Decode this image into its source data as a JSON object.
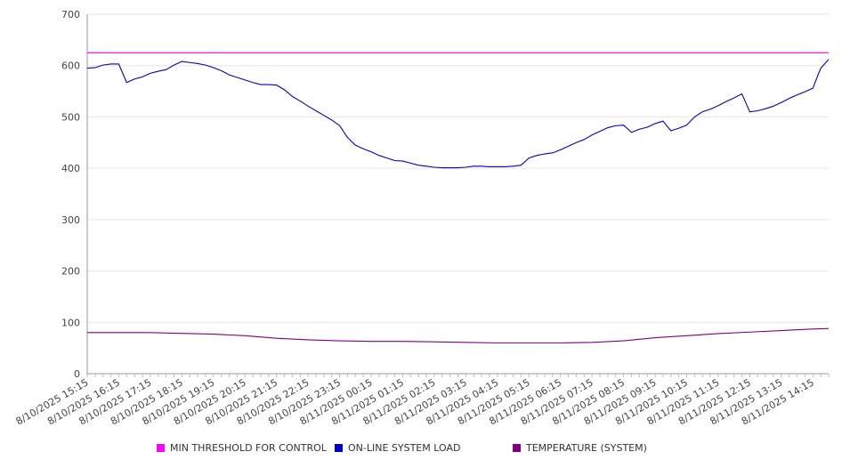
{
  "chart_data": {
    "type": "line",
    "title": "",
    "xlabel": "",
    "ylabel": "",
    "ylim": [
      0,
      700
    ],
    "yticks": [
      0,
      100,
      200,
      300,
      400,
      500,
      600,
      700
    ],
    "grid": true,
    "legend_position": "bottom",
    "x_start": "8/10/2025 15:15",
    "x_end": "8/11/2025 14:45",
    "x_tick_labels": [
      "8/10/2025 15:15",
      "8/10/2025 16:15",
      "8/10/2025 17:15",
      "8/10/2025 18:15",
      "8/10/2025 19:15",
      "8/10/2025 20:15",
      "8/10/2025 21:15",
      "8/10/2025 22:15",
      "8/10/2025 23:15",
      "8/11/2025 00:15",
      "8/11/2025 01:15",
      "8/11/2025 02:15",
      "8/11/2025 03:15",
      "8/11/2025 04:15",
      "8/11/2025 05:15",
      "8/11/2025 06:15",
      "8/11/2025 07:15",
      "8/11/2025 08:15",
      "8/11/2025 09:15",
      "8/11/2025 10:15",
      "8/11/2025 11:15",
      "8/11/2025 12:15",
      "8/11/2025 13:15",
      "8/11/2025 14:15"
    ],
    "series": [
      {
        "name": "MIN THRESHOLD FOR CONTROL",
        "color": "#ff00ff",
        "points": [
          [
            "8/10/2025 15:15",
            625
          ],
          [
            "8/11/2025 14:45",
            625
          ]
        ]
      },
      {
        "name": "ON-LINE SYSTEM LOAD",
        "color": "#0000cc",
        "points": [
          [
            "8/10/2025 15:15",
            595
          ],
          [
            "8/10/2025 15:30",
            596
          ],
          [
            "8/10/2025 15:45",
            601
          ],
          [
            "8/10/2025 16:00",
            603
          ],
          [
            "8/10/2025 16:15",
            603
          ],
          [
            "8/10/2025 16:30",
            567
          ],
          [
            "8/10/2025 16:45",
            574
          ],
          [
            "8/10/2025 17:00",
            578
          ],
          [
            "8/10/2025 17:15",
            585
          ],
          [
            "8/10/2025 17:30",
            589
          ],
          [
            "8/10/2025 17:45",
            592
          ],
          [
            "8/10/2025 18:00",
            601
          ],
          [
            "8/10/2025 18:15",
            608
          ],
          [
            "8/10/2025 18:30",
            606
          ],
          [
            "8/10/2025 18:45",
            604
          ],
          [
            "8/10/2025 19:00",
            601
          ],
          [
            "8/10/2025 19:15",
            596
          ],
          [
            "8/10/2025 19:30",
            590
          ],
          [
            "8/10/2025 19:45",
            582
          ],
          [
            "8/10/2025 20:00",
            577
          ],
          [
            "8/10/2025 20:15",
            572
          ],
          [
            "8/10/2025 20:30",
            567
          ],
          [
            "8/10/2025 20:45",
            563
          ],
          [
            "8/10/2025 21:00",
            563
          ],
          [
            "8/10/2025 21:15",
            562
          ],
          [
            "8/10/2025 21:30",
            553
          ],
          [
            "8/10/2025 21:45",
            540
          ],
          [
            "8/10/2025 22:00",
            531
          ],
          [
            "8/10/2025 22:15",
            521
          ],
          [
            "8/10/2025 22:30",
            512
          ],
          [
            "8/10/2025 22:45",
            503
          ],
          [
            "8/10/2025 23:00",
            494
          ],
          [
            "8/10/2025 23:15",
            483
          ],
          [
            "8/10/2025 23:30",
            460
          ],
          [
            "8/10/2025 23:45",
            445
          ],
          [
            "8/11/2025 00:00",
            438
          ],
          [
            "8/11/2025 00:15",
            432
          ],
          [
            "8/11/2025 00:30",
            425
          ],
          [
            "8/11/2025 00:45",
            420
          ],
          [
            "8/11/2025 01:00",
            415
          ],
          [
            "8/11/2025 01:15",
            414
          ],
          [
            "8/11/2025 01:30",
            410
          ],
          [
            "8/11/2025 01:45",
            406
          ],
          [
            "8/11/2025 02:00",
            404
          ],
          [
            "8/11/2025 02:15",
            402
          ],
          [
            "8/11/2025 02:30",
            401
          ],
          [
            "8/11/2025 02:45",
            401
          ],
          [
            "8/11/2025 03:00",
            401
          ],
          [
            "8/11/2025 03:15",
            402
          ],
          [
            "8/11/2025 03:30",
            404
          ],
          [
            "8/11/2025 03:45",
            404
          ],
          [
            "8/11/2025 04:00",
            403
          ],
          [
            "8/11/2025 04:15",
            403
          ],
          [
            "8/11/2025 04:30",
            403
          ],
          [
            "8/11/2025 04:45",
            404
          ],
          [
            "8/11/2025 05:00",
            406
          ],
          [
            "8/11/2025 05:15",
            420
          ],
          [
            "8/11/2025 05:30",
            425
          ],
          [
            "8/11/2025 05:45",
            428
          ],
          [
            "8/11/2025 06:00",
            430
          ],
          [
            "8/11/2025 06:15",
            436
          ],
          [
            "8/11/2025 06:30",
            443
          ],
          [
            "8/11/2025 06:45",
            450
          ],
          [
            "8/11/2025 07:00",
            456
          ],
          [
            "8/11/2025 07:15",
            465
          ],
          [
            "8/11/2025 07:30",
            472
          ],
          [
            "8/11/2025 07:45",
            479
          ],
          [
            "8/11/2025 08:00",
            483
          ],
          [
            "8/11/2025 08:15",
            484
          ],
          [
            "8/11/2025 08:30",
            470
          ],
          [
            "8/11/2025 08:45",
            476
          ],
          [
            "8/11/2025 09:00",
            480
          ],
          [
            "8/11/2025 09:15",
            487
          ],
          [
            "8/11/2025 09:30",
            492
          ],
          [
            "8/11/2025 09:45",
            473
          ],
          [
            "8/11/2025 10:00",
            478
          ],
          [
            "8/11/2025 10:15",
            484
          ],
          [
            "8/11/2025 10:30",
            500
          ],
          [
            "8/11/2025 10:45",
            510
          ],
          [
            "8/11/2025 11:00",
            515
          ],
          [
            "8/11/2025 11:15",
            522
          ],
          [
            "8/11/2025 11:30",
            530
          ],
          [
            "8/11/2025 11:45",
            537
          ],
          [
            "8/11/2025 12:00",
            545
          ],
          [
            "8/11/2025 12:15",
            510
          ],
          [
            "8/11/2025 12:30",
            512
          ],
          [
            "8/11/2025 12:45",
            516
          ],
          [
            "8/11/2025 13:00",
            521
          ],
          [
            "8/11/2025 13:15",
            528
          ],
          [
            "8/11/2025 13:30",
            536
          ],
          [
            "8/11/2025 13:45",
            543
          ],
          [
            "8/11/2025 14:00",
            549
          ],
          [
            "8/11/2025 14:15",
            556
          ],
          [
            "8/11/2025 14:30",
            595
          ],
          [
            "8/11/2025 14:45",
            612
          ]
        ]
      },
      {
        "name": "TEMPERATURE (SYSTEM)",
        "color": "#800080",
        "points": [
          [
            "8/10/2025 15:15",
            80
          ],
          [
            "8/10/2025 17:15",
            80
          ],
          [
            "8/10/2025 19:15",
            77
          ],
          [
            "8/10/2025 20:15",
            74
          ],
          [
            "8/10/2025 21:15",
            69
          ],
          [
            "8/10/2025 22:15",
            66
          ],
          [
            "8/10/2025 23:15",
            64
          ],
          [
            "8/11/2025 00:15",
            63
          ],
          [
            "8/11/2025 01:15",
            63
          ],
          [
            "8/11/2025 02:15",
            62
          ],
          [
            "8/11/2025 03:15",
            61
          ],
          [
            "8/11/2025 04:15",
            60
          ],
          [
            "8/11/2025 05:15",
            60
          ],
          [
            "8/11/2025 06:15",
            60
          ],
          [
            "8/11/2025 07:15",
            61
          ],
          [
            "8/11/2025 08:15",
            64
          ],
          [
            "8/11/2025 09:15",
            70
          ],
          [
            "8/11/2025 10:15",
            74
          ],
          [
            "8/11/2025 11:15",
            78
          ],
          [
            "8/11/2025 12:15",
            81
          ],
          [
            "8/11/2025 13:15",
            84
          ],
          [
            "8/11/2025 14:15",
            87
          ],
          [
            "8/11/2025 14:45",
            88
          ]
        ]
      }
    ]
  }
}
